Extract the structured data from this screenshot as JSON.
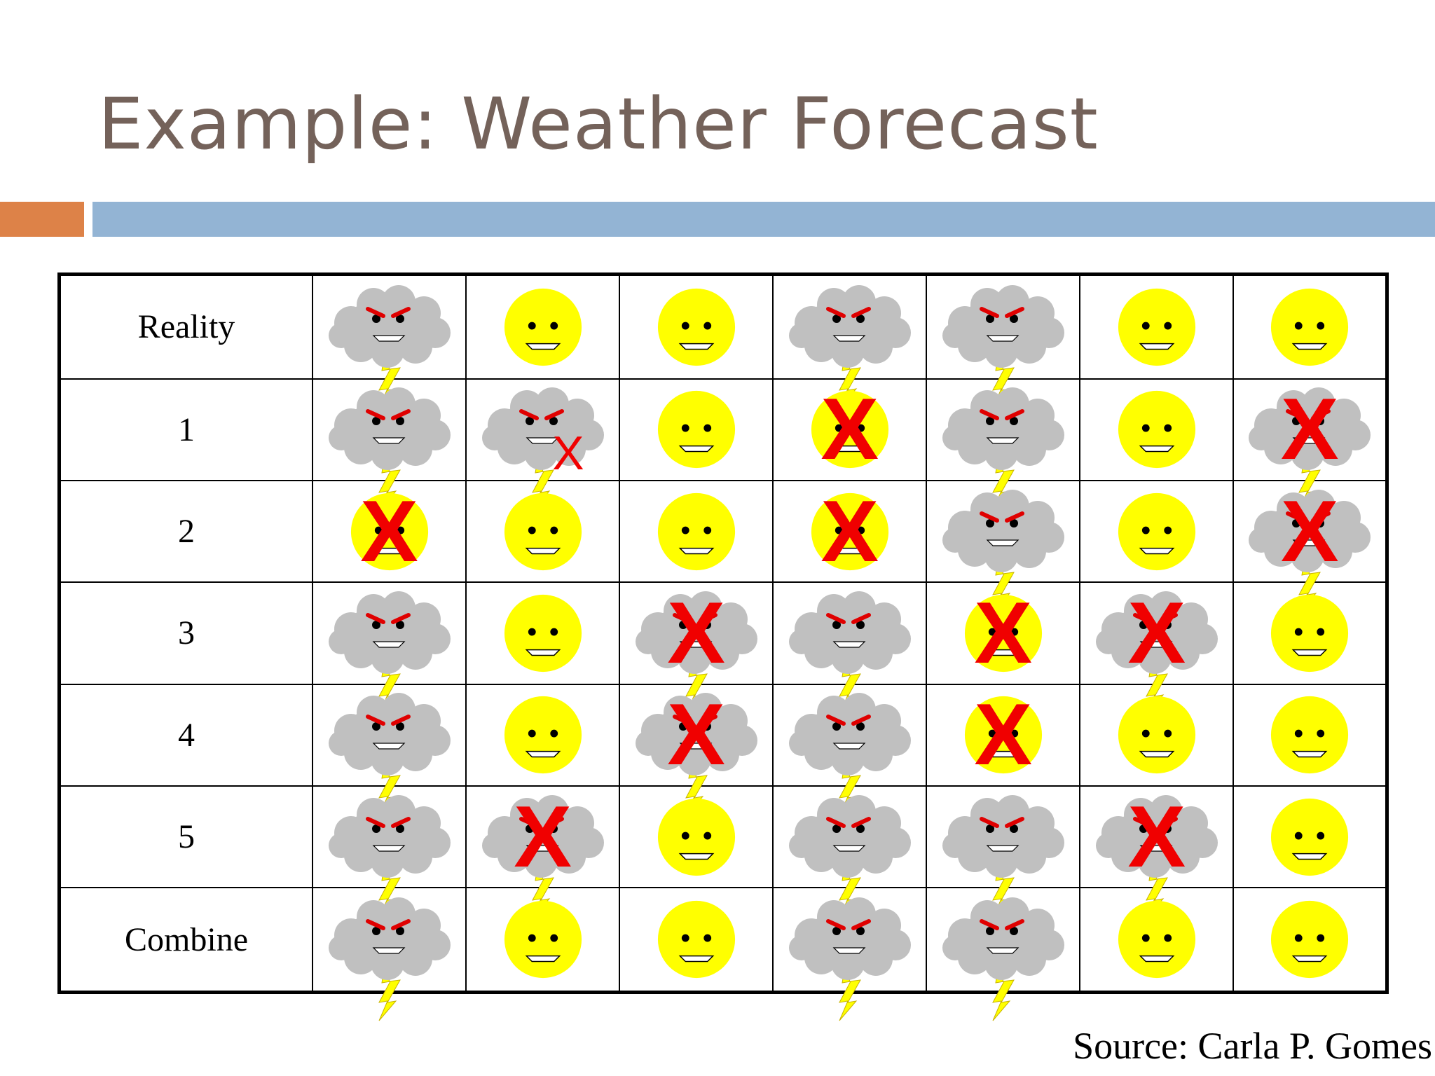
{
  "slide": {
    "title": "Example: Weather Forecast",
    "source": "Source: Carla P. Gomes"
  },
  "colors": {
    "title": "#74625a",
    "accent_orange": "#dd8248",
    "accent_blue": "#93b4d4",
    "sun_yellow": "#ffff00",
    "cloud_gray": "#c0c0c0",
    "bolt_yellow": "#ffff00",
    "eye_red": "#e00000",
    "x_red": "#f00000"
  },
  "icons": {
    "sun": "sun-face-icon",
    "storm": "storm-cloud-icon",
    "wrong": "red-x-mark"
  },
  "table": {
    "rows": [
      {
        "label": "Reality",
        "cells": [
          {
            "icon": "storm",
            "wrong": false
          },
          {
            "icon": "sun",
            "wrong": false
          },
          {
            "icon": "sun",
            "wrong": false
          },
          {
            "icon": "storm",
            "wrong": false
          },
          {
            "icon": "storm",
            "wrong": false
          },
          {
            "icon": "sun",
            "wrong": false
          },
          {
            "icon": "sun",
            "wrong": false
          }
        ]
      },
      {
        "label": "1",
        "cells": [
          {
            "icon": "storm",
            "wrong": false
          },
          {
            "icon": "storm",
            "wrong": true,
            "small_x": true
          },
          {
            "icon": "sun",
            "wrong": false
          },
          {
            "icon": "sun",
            "wrong": true
          },
          {
            "icon": "storm",
            "wrong": false
          },
          {
            "icon": "sun",
            "wrong": false
          },
          {
            "icon": "storm",
            "wrong": true
          }
        ]
      },
      {
        "label": "2",
        "cells": [
          {
            "icon": "sun",
            "wrong": true
          },
          {
            "icon": "sun",
            "wrong": false
          },
          {
            "icon": "sun",
            "wrong": false
          },
          {
            "icon": "sun",
            "wrong": true
          },
          {
            "icon": "storm",
            "wrong": false
          },
          {
            "icon": "sun",
            "wrong": false
          },
          {
            "icon": "storm",
            "wrong": true
          }
        ]
      },
      {
        "label": "3",
        "cells": [
          {
            "icon": "storm",
            "wrong": false
          },
          {
            "icon": "sun",
            "wrong": false
          },
          {
            "icon": "storm",
            "wrong": true
          },
          {
            "icon": "storm",
            "wrong": false
          },
          {
            "icon": "sun",
            "wrong": true
          },
          {
            "icon": "storm",
            "wrong": true
          },
          {
            "icon": "sun",
            "wrong": false
          }
        ]
      },
      {
        "label": "4",
        "cells": [
          {
            "icon": "storm",
            "wrong": false
          },
          {
            "icon": "sun",
            "wrong": false
          },
          {
            "icon": "storm",
            "wrong": true
          },
          {
            "icon": "storm",
            "wrong": false
          },
          {
            "icon": "sun",
            "wrong": true
          },
          {
            "icon": "sun",
            "wrong": false
          },
          {
            "icon": "sun",
            "wrong": false
          }
        ]
      },
      {
        "label": "5",
        "cells": [
          {
            "icon": "storm",
            "wrong": false
          },
          {
            "icon": "storm",
            "wrong": true
          },
          {
            "icon": "sun",
            "wrong": false
          },
          {
            "icon": "storm",
            "wrong": false
          },
          {
            "icon": "storm",
            "wrong": false
          },
          {
            "icon": "storm",
            "wrong": true
          },
          {
            "icon": "sun",
            "wrong": false
          }
        ]
      },
      {
        "label": "Combine",
        "cells": [
          {
            "icon": "storm",
            "wrong": false
          },
          {
            "icon": "sun",
            "wrong": false
          },
          {
            "icon": "sun",
            "wrong": false
          },
          {
            "icon": "storm",
            "wrong": false
          },
          {
            "icon": "storm",
            "wrong": false
          },
          {
            "icon": "sun",
            "wrong": false
          },
          {
            "icon": "sun",
            "wrong": false
          }
        ]
      }
    ]
  }
}
